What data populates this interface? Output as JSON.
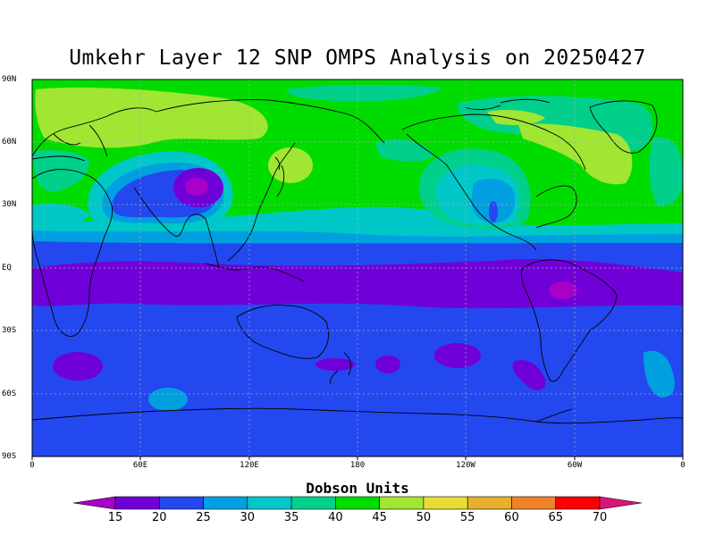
{
  "chart_data": {
    "type": "contour-map",
    "title": "Umkehr Layer 12 SNP OMPS Analysis on 20250427",
    "colorbar_title": "Dobson Units",
    "y_ticks": [
      "90N",
      "60N",
      "30N",
      "EQ",
      "30S",
      "60S",
      "90S"
    ],
    "x_ticks": [
      "0",
      "60E",
      "120E",
      "180",
      "120W",
      "60W",
      "0"
    ],
    "colorbar_levels": [
      "15",
      "20",
      "25",
      "30",
      "35",
      "40",
      "45",
      "50",
      "55",
      "60",
      "65",
      "70"
    ],
    "colorbar_colors": [
      "#a800c8",
      "#7000d8",
      "#2448f0",
      "#00a0e0",
      "#00c8c8",
      "#00d08c",
      "#00dc00",
      "#a0e632",
      "#e6dc32",
      "#e6af2d",
      "#f08228",
      "#fa0000",
      "#dc1478"
    ],
    "grid": "dashed",
    "projection": "lat-lon"
  }
}
